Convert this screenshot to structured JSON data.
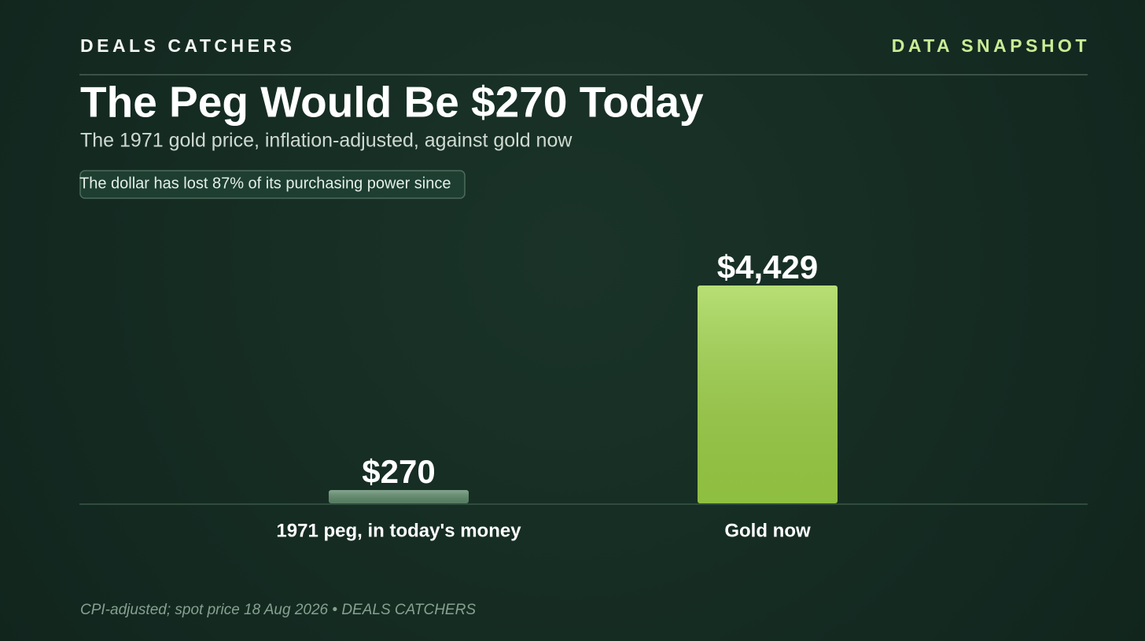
{
  "brand": "DEALS CATCHERS",
  "tag": "DATA SNAPSHOT",
  "chart_data": {
    "type": "bar",
    "title": "The Peg Would Be $270 Today",
    "subtitle": "The 1971 gold price, inflation-adjusted, against gold now",
    "annotation": "The dollar has lost 87% of its purchasing power since",
    "categories": [
      "1971 peg, in today's money",
      "Gold now"
    ],
    "values": [
      270,
      4429
    ],
    "value_labels": [
      "$270",
      "$4,429"
    ],
    "colors": [
      "#5f8c6c",
      "#9fd447"
    ]
  },
  "footer": "CPI-adjusted; spot price 18 Aug 2026 • DEALS CATCHERS"
}
